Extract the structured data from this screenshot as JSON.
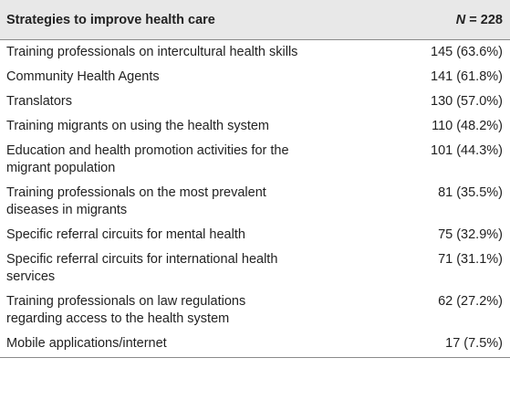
{
  "table": {
    "header": {
      "strategy": "Strategies to improve health care",
      "n_symbol": "N",
      "n_value": " = 228"
    },
    "rows": [
      {
        "strategy": "Training professionals on intercultural health skills",
        "value": "145 (63.6%)"
      },
      {
        "strategy": "Community Health Agents",
        "value": "141 (61.8%)"
      },
      {
        "strategy": "Translators",
        "value": "130 (57.0%)"
      },
      {
        "strategy": "Training migrants on using the health system",
        "value": "110 (48.2%)"
      },
      {
        "strategy": "Education and health promotion activities for the migrant population",
        "value": "101 (44.3%)"
      },
      {
        "strategy": "Training professionals on the most prevalent diseases in migrants",
        "value": "81 (35.5%)"
      },
      {
        "strategy": "Specific referral circuits for mental health",
        "value": "75 (32.9%)"
      },
      {
        "strategy": "Specific referral circuits for international health services",
        "value": "71 (31.1%)"
      },
      {
        "strategy": "Training professionals on law regulations regarding access to the health system",
        "value": "62 (27.2%)"
      },
      {
        "strategy": "Mobile applications/internet",
        "value": "17 (7.5%)"
      }
    ]
  }
}
